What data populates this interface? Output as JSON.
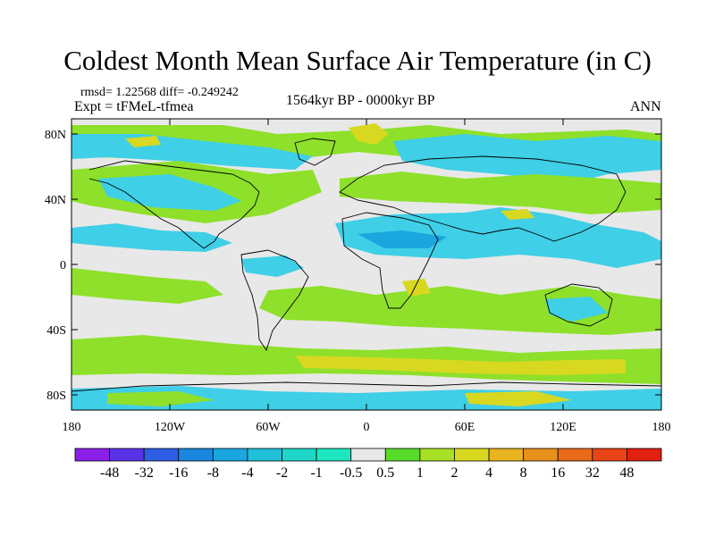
{
  "title": "Coldest Month Mean Surface Air Temperature (in C)",
  "stats_line": "rmsd= 1.22568  diff= -0.249242",
  "experiment": "Expt = tFMeL-tfmea",
  "period": "1564kyr BP - 0000kyr BP",
  "season": "ANN",
  "y_ticks": [
    "80N",
    "40N",
    "0",
    "40S",
    "80S"
  ],
  "x_ticks": [
    "180",
    "120W",
    "60W",
    "0",
    "60E",
    "120E",
    "180"
  ],
  "colorbar": {
    "labels": [
      "-48",
      "-32",
      "-16",
      "-8",
      "-4",
      "-2",
      "-1",
      "-0.5",
      "0.5",
      "1",
      "2",
      "4",
      "8",
      "16",
      "32",
      "48"
    ],
    "colors": [
      "#8a1fe8",
      "#5a32e6",
      "#2f5ee6",
      "#1b86e0",
      "#1aa6de",
      "#20c0d8",
      "#20d6c8",
      "#1ee6c0",
      "#e8e8e8",
      "#58dc2a",
      "#a8e024",
      "#d8d820",
      "#e8b420",
      "#e8901c",
      "#e86a1a",
      "#e84418",
      "#e02010"
    ]
  },
  "map": {
    "background": "#e8e8e8",
    "positive_color": "#8ee02a",
    "negative_color": "#3fcfe6"
  }
}
